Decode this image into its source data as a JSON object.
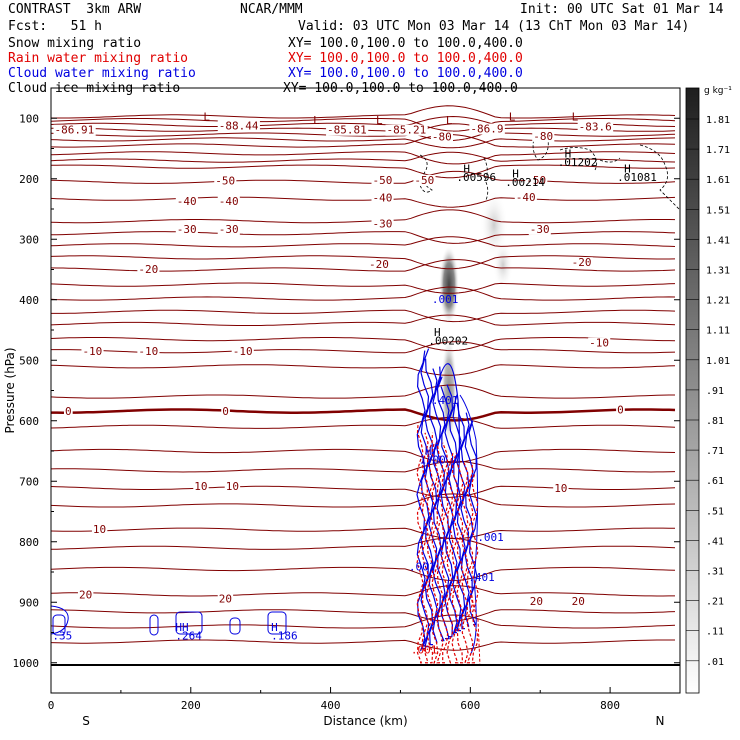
{
  "header": {
    "model": "CONTRAST  3km ARW",
    "org": "NCAR/MMM",
    "init": "Init: 00 UTC Sat 01 Mar 14",
    "fcst": "Fcst:   51 h",
    "valid": "Valid: 03 UTC Mon 03 Mar 14 (13 ChT Mon 03 Mar 14)"
  },
  "legend": [
    {
      "label": "Snow mixing ratio",
      "xy": "XY= 100.0,100.0 to 100.0,400.0",
      "color": "#000000"
    },
    {
      "label": "Rain water mixing ratio",
      "xy": "XY= 100.0,100.0 to 100.0,400.0",
      "color": "#e00000"
    },
    {
      "label": "Cloud water mixing ratio",
      "xy": "XY= 100.0,100.0 to 100.0,400.0",
      "color": "#0000e0"
    },
    {
      "label": "Cloud ice mixing ratio",
      "xy": "XY= 100.0,100.0 to 100.0,400.0",
      "color": "#000000"
    }
  ],
  "chart_data": {
    "type": "contour-cross-section",
    "xlabel": "Distance (km)",
    "ylabel": "Pressure (hPa)",
    "xlim": [
      0,
      900
    ],
    "ylim": [
      1050,
      50
    ],
    "x_ticks": [
      0,
      200,
      400,
      600,
      800
    ],
    "y_ticks": [
      100,
      200,
      300,
      400,
      500,
      600,
      700,
      800,
      900,
      1000
    ],
    "x_end_labels": {
      "left": "S",
      "right": "N"
    },
    "colorbar": {
      "unit": "g kg⁻¹",
      "labels": [
        "1.81",
        "1.71",
        "1.61",
        "1.51",
        "1.41",
        "1.31",
        "1.21",
        "1.11",
        "1.01",
        ".91",
        ".81",
        ".71",
        ".61",
        ".51",
        ".41",
        ".31",
        ".21",
        ".11",
        ".01"
      ]
    },
    "temperature_contour_labels": [
      {
        "text": "-86.91",
        "x": 5,
        "p": 119
      },
      {
        "text": "-88.44",
        "x": 240,
        "p": 112
      },
      {
        "text": "-85.81",
        "x": 395,
        "p": 119
      },
      {
        "text": "-85.21",
        "x": 480,
        "p": 119
      },
      {
        "text": "-86.9",
        "x": 600,
        "p": 117
      },
      {
        "text": "-83.6",
        "x": 755,
        "p": 114
      },
      {
        "text": "-80",
        "x": 545,
        "p": 130
      },
      {
        "text": "-80",
        "x": 690,
        "p": 129
      },
      {
        "text": "-50",
        "x": 235,
        "p": 203
      },
      {
        "text": "-50",
        "x": 460,
        "p": 202
      },
      {
        "text": "-50",
        "x": 520,
        "p": 202
      },
      {
        "text": "-50",
        "x": 680,
        "p": 202
      },
      {
        "text": "-40",
        "x": 180,
        "p": 237
      },
      {
        "text": "-40",
        "x": 240,
        "p": 237
      },
      {
        "text": "-40",
        "x": 460,
        "p": 231
      },
      {
        "text": "-40",
        "x": 665,
        "p": 230
      },
      {
        "text": "-30",
        "x": 180,
        "p": 283
      },
      {
        "text": "-30",
        "x": 240,
        "p": 283
      },
      {
        "text": "-30",
        "x": 460,
        "p": 274
      },
      {
        "text": "-30",
        "x": 685,
        "p": 283
      },
      {
        "text": "-20",
        "x": 125,
        "p": 349
      },
      {
        "text": "-20",
        "x": 455,
        "p": 341
      },
      {
        "text": "-20",
        "x": 745,
        "p": 338
      },
      {
        "text": "-10",
        "x": 45,
        "p": 485
      },
      {
        "text": "-10",
        "x": 125,
        "p": 485
      },
      {
        "text": "-10",
        "x": 260,
        "p": 485
      },
      {
        "text": "-10",
        "x": 770,
        "p": 471
      },
      {
        "text": "0",
        "x": 20,
        "p": 584
      },
      {
        "text": "0",
        "x": 245,
        "p": 584
      },
      {
        "text": "0",
        "x": 810,
        "p": 581
      },
      {
        "text": "10",
        "x": 205,
        "p": 708
      },
      {
        "text": "10",
        "x": 250,
        "p": 708
      },
      {
        "text": "10",
        "x": 60,
        "p": 779
      },
      {
        "text": "10",
        "x": 720,
        "p": 711
      },
      {
        "text": "20",
        "x": 40,
        "p": 887
      },
      {
        "text": "20",
        "x": 240,
        "p": 894
      },
      {
        "text": "20",
        "x": 685,
        "p": 898
      },
      {
        "text": "20",
        "x": 745,
        "p": 898
      }
    ],
    "annotations": [
      {
        "text": "L",
        "x": 218,
        "p": 97
      },
      {
        "text": "L",
        "x": 375,
        "p": 103
      },
      {
        "text": "L",
        "x": 465,
        "p": 103
      },
      {
        "text": "L",
        "x": 565,
        "p": 103
      },
      {
        "text": "L",
        "x": 655,
        "p": 97
      },
      {
        "text": "L",
        "x": 745,
        "p": 97
      },
      {
        "text": "H",
        "x": 590,
        "p": 183
      },
      {
        "text": ".00596",
        "x": 580,
        "p": 197
      },
      {
        "text": "H",
        "x": 660,
        "p": 191
      },
      {
        "text": ".00214",
        "x": 650,
        "p": 205
      },
      {
        "text": "H",
        "x": 735,
        "p": 158
      },
      {
        "text": ".01202",
        "x": 725,
        "p": 172
      },
      {
        "text": "H",
        "x": 820,
        "p": 183
      },
      {
        "text": ".01081",
        "x": 810,
        "p": 197
      },
      {
        "text": ".001",
        "x": 545,
        "p": 399
      },
      {
        "text": "H",
        "x": 548,
        "p": 453
      },
      {
        "text": ".00202",
        "x": 540,
        "p": 467
      },
      {
        "text": ".401",
        "x": 545,
        "p": 566
      },
      {
        "text": "H",
        "x": 535,
        "p": 650
      },
      {
        "text": "1.00",
        "x": 527,
        "p": 664
      },
      {
        "text": ".001",
        "x": 610,
        "p": 792
      },
      {
        "text": ".001",
        "x": 512,
        "p": 841
      },
      {
        "text": ".401",
        "x": 597,
        "p": 858
      },
      {
        "text": "HH",
        "x": 178,
        "p": 941
      },
      {
        "text": ".264",
        "x": 178,
        "p": 955
      },
      {
        "text": "H",
        "x": 315,
        "p": 941
      },
      {
        "text": ".186",
        "x": 315,
        "p": 955
      },
      {
        "text": ".35",
        "x": 2,
        "p": 955
      },
      {
        "text": ".001",
        "x": 515,
        "p": 978
      }
    ]
  }
}
